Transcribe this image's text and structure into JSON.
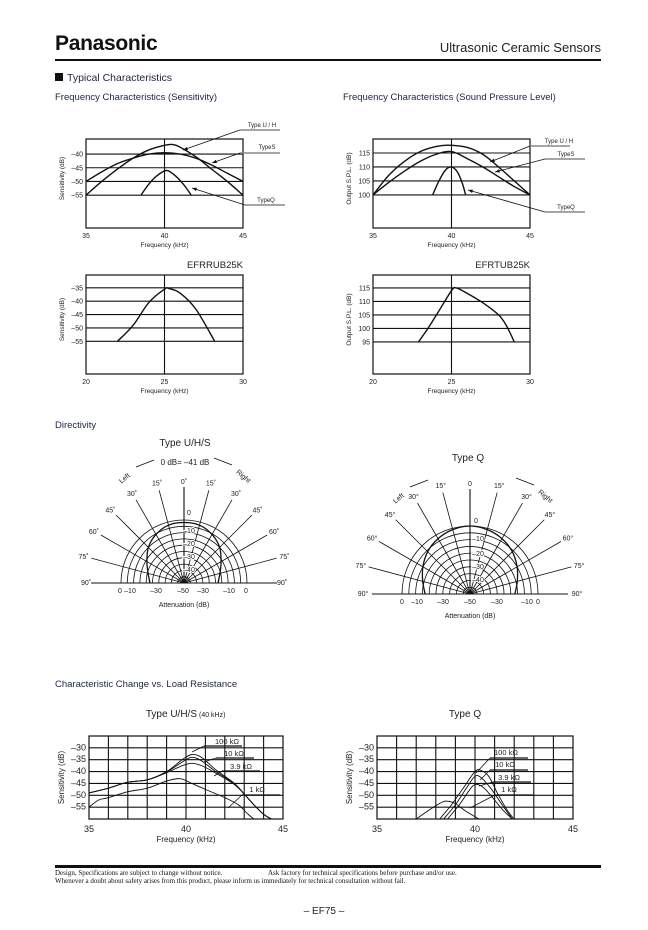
{
  "header": {
    "brand": "Panasonic",
    "title": "Ultrasonic Ceramic Sensors"
  },
  "sections": {
    "typical": "Typical Characteristics",
    "freq_sens": "Frequency Characteristics (Sensitivity)",
    "freq_spl": "Frequency Characteristics (Sound Pressure Level)",
    "directivity": "Directivity",
    "load": "Characteristic Change vs. Load Resistance"
  },
  "footer": {
    "note1": "Design, Specifications are subject to change without notice.",
    "note2": "Ask factory for technical specifications before purchase and/or use.",
    "note3": "Whenever a doubt about safety arises from this product, please inform us immediately for technical consultation without fail.",
    "page": "– EF75 –"
  },
  "chart_data": [
    {
      "type": "line",
      "title": "",
      "xlabel": "Frequency (kHz)",
      "ylabel": "Sensitivity (dB)",
      "xlim": [
        35,
        45
      ],
      "ylim": [
        -67,
        -34.5
      ],
      "xticks": [
        "35",
        "40",
        "45"
      ],
      "yticks": [
        "–40",
        "–45",
        "–50",
        "–55"
      ],
      "hgrid": [
        -40,
        -45,
        -50,
        -55
      ],
      "vgrid": [
        40
      ],
      "series": [
        {
          "name": "Type U / H",
          "points": [
            [
              35,
              -55
            ],
            [
              36,
              -50
            ],
            [
              37,
              -45.5
            ],
            [
              38,
              -41.5
            ],
            [
              39,
              -38.5
            ],
            [
              40,
              -36.8
            ],
            [
              40.5,
              -36.5
            ],
            [
              41,
              -37.5
            ],
            [
              42,
              -41
            ],
            [
              43,
              -45.5
            ],
            [
              44,
              -50
            ],
            [
              45,
              -55
            ]
          ]
        },
        {
          "name": "TypeS",
          "points": [
            [
              35,
              -50
            ],
            [
              36,
              -46.5
            ],
            [
              37,
              -43.5
            ],
            [
              38,
              -41.5
            ],
            [
              39,
              -40
            ],
            [
              40,
              -39.5
            ],
            [
              41,
              -40
            ],
            [
              42,
              -41.5
            ],
            [
              43,
              -44
            ],
            [
              44,
              -47
            ],
            [
              45,
              -50
            ]
          ]
        },
        {
          "name": "TypeQ",
          "points": [
            [
              38.5,
              -55
            ],
            [
              39,
              -51
            ],
            [
              39.5,
              -48
            ],
            [
              40.1,
              -46
            ],
            [
              40.6,
              -47.5
            ],
            [
              41.2,
              -51
            ],
            [
              41.7,
              -55
            ]
          ]
        }
      ]
    },
    {
      "type": "line",
      "title": "",
      "xlabel": "Frequency (kHz)",
      "ylabel": "Output S.P.L. (dB)",
      "xlim": [
        35,
        45
      ],
      "ylim": [
        88.2,
        120
      ],
      "xticks": [
        "35",
        "40",
        "45"
      ],
      "yticks": [
        "115",
        "110",
        "105",
        "100"
      ],
      "hgrid": [
        115,
        110,
        105,
        100
      ],
      "vgrid": [
        40
      ],
      "series": [
        {
          "name": "Type U / H",
          "points": [
            [
              35,
              100
            ],
            [
              36,
              107
            ],
            [
              37,
              112
            ],
            [
              38,
              115.5
            ],
            [
              39,
              117.3
            ],
            [
              39.8,
              117.8
            ],
            [
              41,
              117
            ],
            [
              42,
              114.5
            ],
            [
              43,
              110
            ],
            [
              44,
              105
            ],
            [
              45,
              100
            ]
          ]
        },
        {
          "name": "TypeS",
          "points": [
            [
              35,
              100
            ],
            [
              36,
              104.5
            ],
            [
              37,
              108.5
            ],
            [
              38,
              112
            ],
            [
              39,
              114.5
            ],
            [
              40,
              115.5
            ],
            [
              41,
              113
            ],
            [
              42,
              110
            ],
            [
              43,
              106.5
            ],
            [
              44,
              103
            ],
            [
              45,
              100
            ]
          ]
        },
        {
          "name": "TypeQ",
          "points": [
            [
              38.8,
              100
            ],
            [
              39.2,
              105
            ],
            [
              39.6,
              108.8
            ],
            [
              40,
              110
            ],
            [
              40.4,
              108
            ],
            [
              40.7,
              104
            ],
            [
              40.9,
              100
            ]
          ]
        }
      ]
    },
    {
      "type": "line",
      "title": "EFRRUB25K",
      "xlabel": "Frequency (kHz)",
      "ylabel": "Sensitivity (dB)",
      "xlim": [
        20,
        30
      ],
      "ylim": [
        -67.2,
        -30.2
      ],
      "xticks": [
        "20",
        "25",
        "30"
      ],
      "yticks": [
        "–35",
        "–40",
        "–45",
        "–50",
        "–55"
      ],
      "hgrid": [
        -35,
        -40,
        -45,
        -50,
        -55
      ],
      "vgrid": [
        25
      ],
      "series": [
        {
          "points": [
            [
              22,
              -55
            ],
            [
              23,
              -49
            ],
            [
              24,
              -40.5
            ],
            [
              25,
              -35.5
            ],
            [
              25.3,
              -35.3
            ],
            [
              26,
              -37
            ],
            [
              27,
              -43
            ],
            [
              28.2,
              -55
            ]
          ]
        }
      ]
    },
    {
      "type": "line",
      "title": "EFRTUB25K",
      "xlabel": "Frequency (kHz)",
      "ylabel": "Output S.P.L. (dB)",
      "xlim": [
        20,
        30
      ],
      "ylim": [
        83.1,
        119.8
      ],
      "xticks": [
        "20",
        "25",
        "30"
      ],
      "yticks": [
        "115",
        "110",
        "105",
        "100",
        "95"
      ],
      "hgrid": [
        115,
        110,
        105,
        100,
        95
      ],
      "vgrid": [
        25
      ],
      "series": [
        {
          "points": [
            [
              22.9,
              95
            ],
            [
              23.5,
              100
            ],
            [
              24.2,
              106.5
            ],
            [
              25,
              114
            ],
            [
              25.3,
              115
            ],
            [
              26,
              113
            ],
            [
              27,
              109.5
            ],
            [
              28,
              105
            ],
            [
              28.5,
              101
            ],
            [
              29,
              95
            ]
          ]
        }
      ]
    },
    {
      "type": "polar",
      "title": "Type U/H/S",
      "subtitle": "0 dB= –41 dB",
      "xlabel": "Attenuation (dB)",
      "left": "Left",
      "right": "Right",
      "angles": [
        "0˚",
        "15˚",
        "30˚",
        "45˚",
        "60˚",
        "75˚",
        "90˚"
      ],
      "radial_labels": [
        "0",
        "–10",
        "–20",
        "–30",
        "–40"
      ],
      "base_labels": [
        "0",
        "–10",
        "–30",
        "–50",
        "–30",
        "–10",
        "0"
      ],
      "range_db": [
        -50,
        0
      ],
      "pattern": [
        [
          0,
          -2
        ],
        [
          15,
          -2.5
        ],
        [
          30,
          -5.5
        ],
        [
          45,
          -10
        ],
        [
          60,
          -16
        ],
        [
          75,
          -20.5
        ],
        [
          90,
          -23
        ]
      ]
    },
    {
      "type": "polar",
      "title": "Type Q",
      "subtitle": "",
      "xlabel": "Attenuation (dB)",
      "left": "Left",
      "right": "Right",
      "angles": [
        "0",
        "15°",
        "30°",
        "45°",
        "60°",
        "75°",
        "90°"
      ],
      "radial_labels": [
        "0",
        "–10",
        "–20",
        "–30",
        "–40"
      ],
      "base_labels": [
        "0",
        "–10",
        "–30",
        "–50",
        "–30",
        "–10",
        "0"
      ],
      "range_db": [
        -50,
        0
      ],
      "pattern": [
        [
          0,
          0
        ],
        [
          15,
          -1
        ],
        [
          30,
          -3
        ],
        [
          45,
          -6
        ],
        [
          60,
          -10
        ],
        [
          75,
          -14
        ],
        [
          90,
          -17
        ]
      ]
    },
    {
      "type": "line",
      "title": "Type U/H/S",
      "title_note": "(40 kHz)",
      "xlabel": "Frequency (kHz)",
      "ylabel": "Sensitivity (dB)",
      "xlim": [
        35,
        45
      ],
      "ylim": [
        -60,
        -25
      ],
      "xticks": [
        "35",
        "40",
        "45"
      ],
      "yticks": [
        "–30",
        "–35",
        "–40",
        "–45",
        "–50",
        "–55"
      ],
      "hgrid": [
        -30,
        -35,
        -40,
        -45,
        -50,
        -55
      ],
      "vgrid": [
        36,
        37,
        38,
        39,
        40,
        41,
        42,
        43,
        44
      ],
      "series": [
        {
          "name": "100 kΩ",
          "points": [
            [
              35,
              -49
            ],
            [
              36,
              -47
            ],
            [
              37,
              -44.5
            ],
            [
              38,
              -43.5
            ],
            [
              39,
              -40
            ],
            [
              39.8,
              -35
            ],
            [
              40.3,
              -32.8
            ],
            [
              40.8,
              -34
            ],
            [
              41.5,
              -39
            ],
            [
              42.5,
              -45
            ],
            [
              43,
              -49.5
            ],
            [
              43.5,
              -54
            ],
            [
              44,
              -58
            ],
            [
              44.4,
              -60
            ]
          ]
        },
        {
          "name": "10 kΩ",
          "points": [
            [
              35,
              -49
            ],
            [
              36,
              -47
            ],
            [
              37,
              -44.5
            ],
            [
              38,
              -43.5
            ],
            [
              39,
              -40.2
            ],
            [
              39.8,
              -36
            ],
            [
              40.3,
              -34
            ],
            [
              40.8,
              -35.5
            ],
            [
              41.5,
              -39.8
            ],
            [
              42.5,
              -45.2
            ],
            [
              43,
              -49.5
            ],
            [
              43.5,
              -54
            ],
            [
              44,
              -58
            ],
            [
              44.4,
              -60
            ]
          ]
        },
        {
          "name": "3.9 kΩ",
          "points": [
            [
              35,
              -49
            ],
            [
              36,
              -47
            ],
            [
              37,
              -44.5
            ],
            [
              38,
              -43.5
            ],
            [
              39,
              -40.5
            ],
            [
              39.8,
              -37.5
            ],
            [
              40.3,
              -36.5
            ],
            [
              40.8,
              -37.5
            ],
            [
              41.5,
              -40.5
            ],
            [
              42.5,
              -45.5
            ],
            [
              43,
              -49.5
            ],
            [
              43.5,
              -54
            ],
            [
              44,
              -58
            ],
            [
              44.4,
              -60
            ]
          ]
        },
        {
          "name": "1 kΩ",
          "points": [
            [
              35,
              -55
            ],
            [
              35.5,
              -52
            ],
            [
              36,
              -51
            ],
            [
              37,
              -48.5
            ],
            [
              38,
              -47
            ],
            [
              39,
              -44
            ],
            [
              39.7,
              -43
            ],
            [
              40.3,
              -45
            ],
            [
              41,
              -47.5
            ],
            [
              42,
              -51
            ],
            [
              42.7,
              -54
            ],
            [
              43.2,
              -58
            ],
            [
              43.5,
              -60
            ]
          ]
        }
      ]
    },
    {
      "type": "line",
      "title": "Type Q",
      "xlabel": "Frequency (kHz)",
      "ylabel": "Sensitivity (dB)",
      "xlim": [
        35,
        45
      ],
      "ylim": [
        -60,
        -25
      ],
      "xticks": [
        "35",
        "40",
        "45"
      ],
      "yticks": [
        "–30",
        "–35",
        "–40",
        "–45",
        "–50",
        "–55"
      ],
      "hgrid": [
        -30,
        -35,
        -40,
        -45,
        -50,
        -55
      ],
      "vgrid": [
        36,
        37,
        38,
        39,
        40,
        41,
        42,
        43,
        44
      ],
      "series": [
        {
          "name": "100 kΩ",
          "points": [
            [
              38.2,
              -60
            ],
            [
              38.8,
              -54
            ],
            [
              39.4,
              -47
            ],
            [
              40,
              -40
            ],
            [
              40.3,
              -39.5
            ],
            [
              40.7,
              -42
            ],
            [
              41.2,
              -50
            ],
            [
              41.7,
              -57
            ],
            [
              42,
              -60
            ]
          ]
        },
        {
          "name": "10 kΩ",
          "points": [
            [
              38.4,
              -60
            ],
            [
              39,
              -54
            ],
            [
              39.6,
              -46.5
            ],
            [
              40,
              -42
            ],
            [
              40.3,
              -42.5
            ],
            [
              40.8,
              -47
            ],
            [
              41.3,
              -53
            ],
            [
              41.9,
              -60
            ]
          ]
        },
        {
          "name": "3.9 kΩ",
          "points": [
            [
              38.6,
              -60
            ],
            [
              39.2,
              -54
            ],
            [
              39.7,
              -48
            ],
            [
              40,
              -45.5
            ],
            [
              40.4,
              -46.5
            ],
            [
              40.9,
              -51
            ],
            [
              41.4,
              -56
            ],
            [
              41.9,
              -60
            ]
          ]
        },
        {
          "name": "1 kΩ",
          "points": [
            [
              37,
              -60
            ],
            [
              37.7,
              -56
            ],
            [
              38.3,
              -53
            ],
            [
              38.6,
              -52.5
            ],
            [
              39,
              -53.5
            ],
            [
              39.5,
              -56.5
            ],
            [
              40.2,
              -60
            ]
          ]
        }
      ]
    }
  ]
}
